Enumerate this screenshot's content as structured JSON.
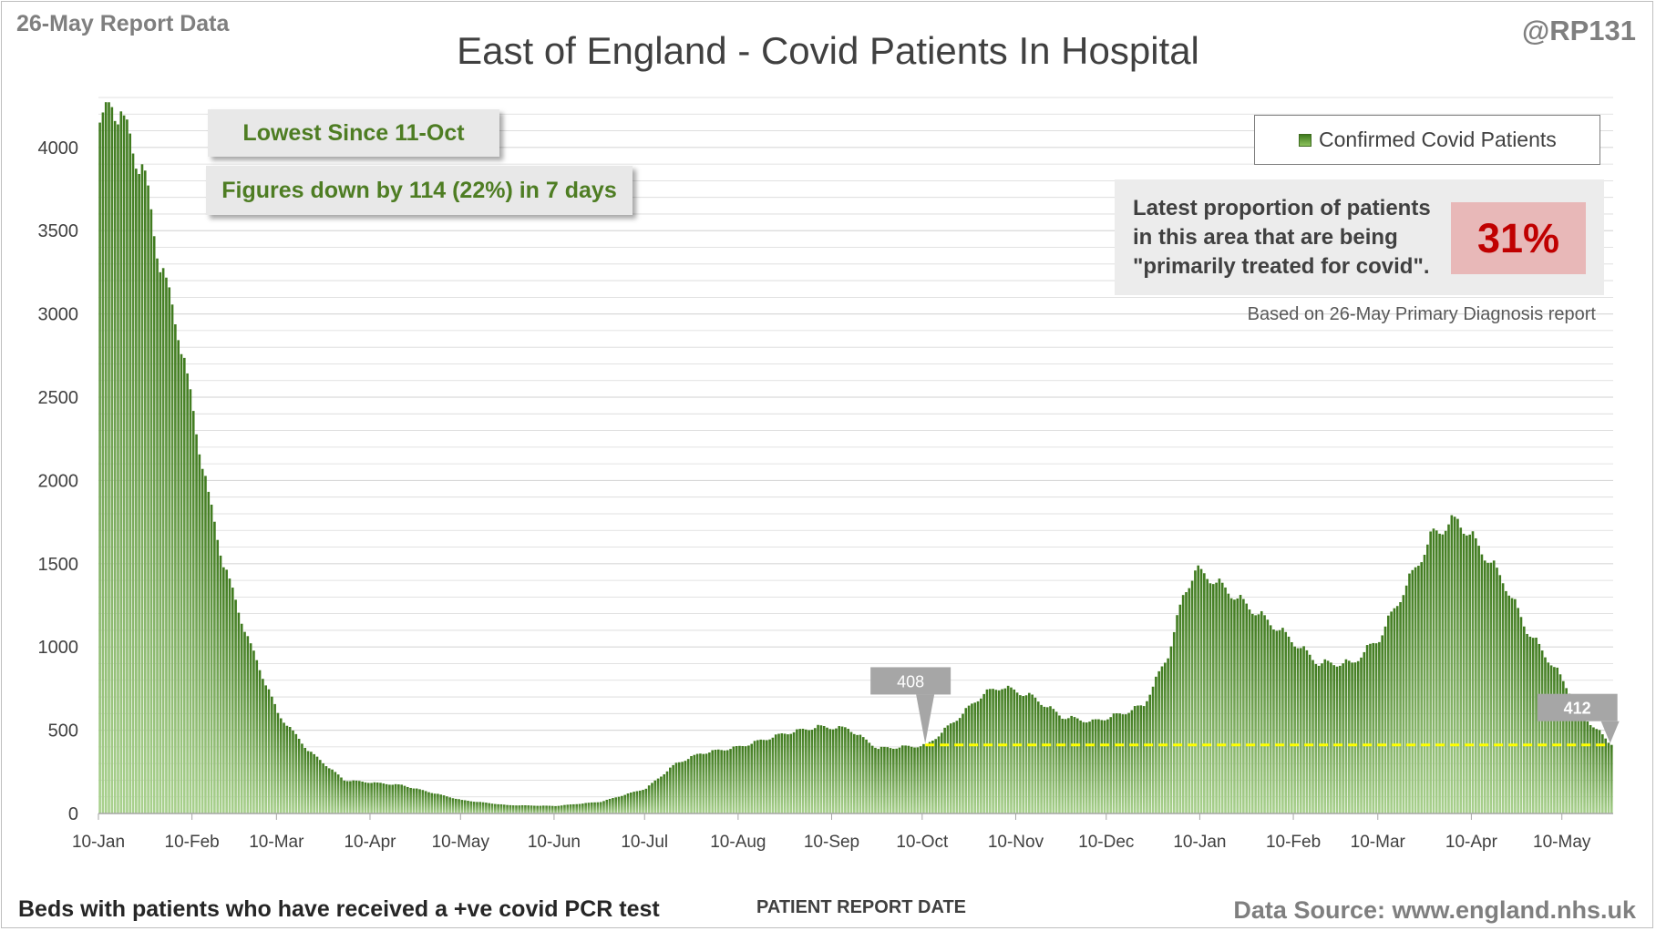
{
  "header": {
    "report_date": "26-May Report Data",
    "handle": "@RP131",
    "title": "East of England - Covid Patients In Hospital"
  },
  "callouts": {
    "lowest": "Lowest Since 11-Oct",
    "down": "Figures down by 114 (22%) in 7 days"
  },
  "legend": {
    "label": "Confirmed Covid Patients"
  },
  "proportion": {
    "text": "Latest proportion of patients\nin this area that are being\n\"primarily treated for covid\".",
    "value": "31%",
    "source": "Based on 26-May Primary Diagnosis report"
  },
  "footer": {
    "left": "Beds with patients who have received a +ve covid PCR test",
    "xlabel": "PATIENT REPORT DATE",
    "right": "Data Source: www.england.nhs.uk"
  },
  "colors": {
    "bar_dark": "#3f7a1e",
    "bar_light": "#a9d18e",
    "reference_line": "#ffff00",
    "gridline": "#d9d9d9",
    "text_green": "#4e7d23",
    "highlight_red": "#c00000"
  },
  "chart_data": {
    "type": "bar",
    "start_date": "2021-01-10",
    "end_date": "2022-05-26",
    "ylim": [
      0,
      4300
    ],
    "yticks": [
      0,
      500,
      1000,
      1500,
      2000,
      2500,
      3000,
      3500,
      4000
    ],
    "xticks": [
      "10-Jan",
      "10-Feb",
      "10-Mar",
      "10-Apr",
      "10-May",
      "10-Jun",
      "10-Jul",
      "10-Aug",
      "10-Sep",
      "10-Oct",
      "10-Nov",
      "10-Dec",
      "10-Jan",
      "10-Feb",
      "10-Mar",
      "10-Apr",
      "10-May"
    ],
    "grid": true,
    "legend_position": "top-right",
    "series": [
      {
        "name": "Confirmed Covid Patients",
        "keypoints": [
          {
            "date": "2021-01-10",
            "value": 4100
          },
          {
            "date": "2021-01-14",
            "value": 4280
          },
          {
            "date": "2021-01-20",
            "value": 4050
          },
          {
            "date": "2021-01-25",
            "value": 3800
          },
          {
            "date": "2021-01-30",
            "value": 3300
          },
          {
            "date": "2021-02-05",
            "value": 2900
          },
          {
            "date": "2021-02-10",
            "value": 2400
          },
          {
            "date": "2021-02-15",
            "value": 1900
          },
          {
            "date": "2021-02-20",
            "value": 1500
          },
          {
            "date": "2021-02-28",
            "value": 1050
          },
          {
            "date": "2021-03-10",
            "value": 600
          },
          {
            "date": "2021-03-20",
            "value": 380
          },
          {
            "date": "2021-04-01",
            "value": 200
          },
          {
            "date": "2021-04-20",
            "value": 170
          },
          {
            "date": "2021-05-10",
            "value": 80
          },
          {
            "date": "2021-05-25",
            "value": 50
          },
          {
            "date": "2021-06-10",
            "value": 45
          },
          {
            "date": "2021-06-25",
            "value": 70
          },
          {
            "date": "2021-07-10",
            "value": 150
          },
          {
            "date": "2021-07-20",
            "value": 300
          },
          {
            "date": "2021-07-28",
            "value": 360
          },
          {
            "date": "2021-08-10",
            "value": 400
          },
          {
            "date": "2021-08-25",
            "value": 480
          },
          {
            "date": "2021-09-05",
            "value": 520
          },
          {
            "date": "2021-09-15",
            "value": 510
          },
          {
            "date": "2021-09-25",
            "value": 390
          },
          {
            "date": "2021-10-11",
            "value": 408
          },
          {
            "date": "2021-10-20",
            "value": 550
          },
          {
            "date": "2021-10-30",
            "value": 720
          },
          {
            "date": "2021-11-05",
            "value": 760
          },
          {
            "date": "2021-11-15",
            "value": 700
          },
          {
            "date": "2021-11-25",
            "value": 580
          },
          {
            "date": "2021-12-05",
            "value": 550
          },
          {
            "date": "2021-12-15",
            "value": 600
          },
          {
            "date": "2021-12-22",
            "value": 650
          },
          {
            "date": "2021-12-30",
            "value": 950
          },
          {
            "date": "2022-01-04",
            "value": 1300
          },
          {
            "date": "2022-01-08",
            "value": 1460
          },
          {
            "date": "2022-01-14",
            "value": 1400
          },
          {
            "date": "2022-01-25",
            "value": 1250
          },
          {
            "date": "2022-02-05",
            "value": 1100
          },
          {
            "date": "2022-02-18",
            "value": 900
          },
          {
            "date": "2022-03-01",
            "value": 900
          },
          {
            "date": "2022-03-10",
            "value": 1050
          },
          {
            "date": "2022-03-20",
            "value": 1400
          },
          {
            "date": "2022-03-28",
            "value": 1680
          },
          {
            "date": "2022-04-05",
            "value": 1760
          },
          {
            "date": "2022-04-12",
            "value": 1600
          },
          {
            "date": "2022-04-20",
            "value": 1400
          },
          {
            "date": "2022-04-28",
            "value": 1100
          },
          {
            "date": "2022-05-08",
            "value": 850
          },
          {
            "date": "2022-05-18",
            "value": 560
          },
          {
            "date": "2022-05-26",
            "value": 412
          }
        ]
      }
    ],
    "annotations": [
      {
        "label": "408",
        "date": "2021-10-11",
        "value": 408
      },
      {
        "label": "412",
        "date": "2022-05-26",
        "value": 412
      }
    ],
    "reference_line": {
      "value": 412,
      "from": "2021-10-11",
      "to": "2022-05-26",
      "style": "dashed"
    }
  }
}
